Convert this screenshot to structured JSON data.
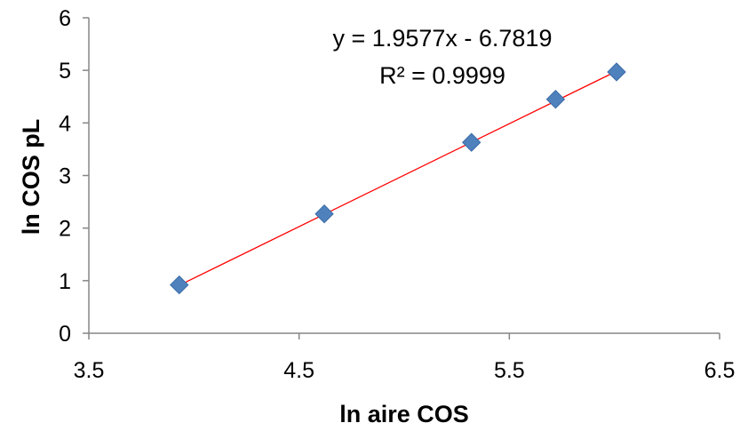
{
  "chart_data": {
    "type": "scatter",
    "xlabel": "ln aire COS",
    "ylabel": "ln COS  pL",
    "xlim": [
      3.5,
      6.5
    ],
    "ylim": [
      0,
      6
    ],
    "x_ticks": [
      "3.5",
      "4.5",
      "5.5",
      "6.5"
    ],
    "y_ticks": [
      "0",
      "1",
      "2",
      "3",
      "4",
      "5",
      "6"
    ],
    "x_tick_values": [
      3.5,
      4.5,
      5.5,
      6.5
    ],
    "y_tick_values": [
      0,
      1,
      2,
      3,
      4,
      5,
      6
    ],
    "grid": false,
    "legend": "none",
    "series": [
      {
        "x": [
          3.93,
          4.62,
          5.32,
          5.72,
          6.01
        ],
        "y": [
          0.92,
          2.27,
          3.63,
          4.45,
          4.97
        ],
        "color": "#4F81BD",
        "marker": "diamond"
      }
    ],
    "trendline": {
      "type": "linear",
      "slope": 1.9577,
      "intercept": -6.7819,
      "x_range": [
        3.93,
        6.01
      ],
      "color": "#FF0000",
      "equation_label": "y = 1.9577x - 6.7819",
      "r2_label": "R² = 0.9999"
    }
  }
}
